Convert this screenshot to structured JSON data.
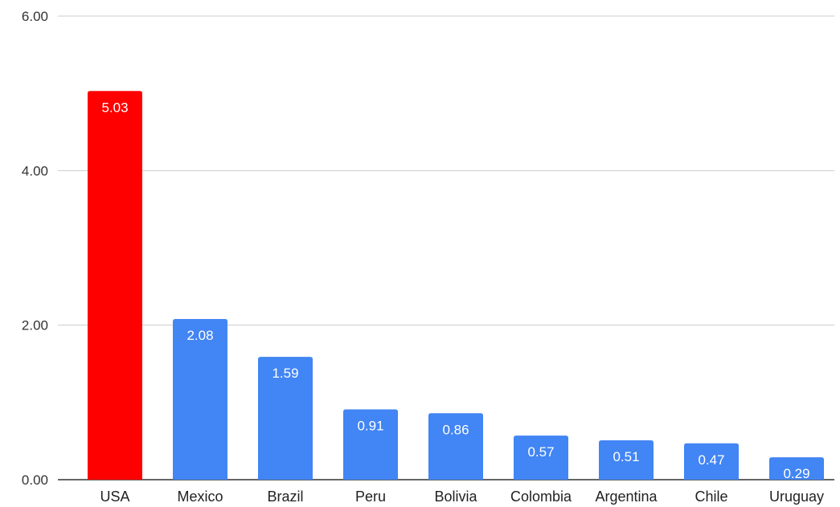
{
  "chart_data": {
    "type": "bar",
    "title": "",
    "xlabel": "",
    "ylabel": "",
    "categories": [
      "USA",
      "Mexico",
      "Brazil",
      "Peru",
      "Bolivia",
      "Colombia",
      "Argentina",
      "Chile",
      "Uruguay"
    ],
    "values": [
      5.03,
      2.08,
      1.59,
      0.91,
      0.86,
      0.57,
      0.51,
      0.47,
      0.29
    ],
    "data_labels": [
      "5.03",
      "2.08",
      "1.59",
      "0.91",
      "0.86",
      "0.57",
      "0.51",
      "0.47",
      "0.29"
    ],
    "ylim": [
      0,
      6
    ],
    "yticks": [
      0,
      2,
      4,
      6
    ],
    "ytick_labels": [
      "0.00",
      "2.00",
      "4.00",
      "6.00"
    ],
    "grid": true,
    "legend": "none",
    "colors": {
      "default_bar": "#4285f4",
      "highlight_bar": "#ff0000",
      "highlight_category": "USA",
      "data_label": "#ffffff",
      "grid": "#cccccc"
    }
  }
}
